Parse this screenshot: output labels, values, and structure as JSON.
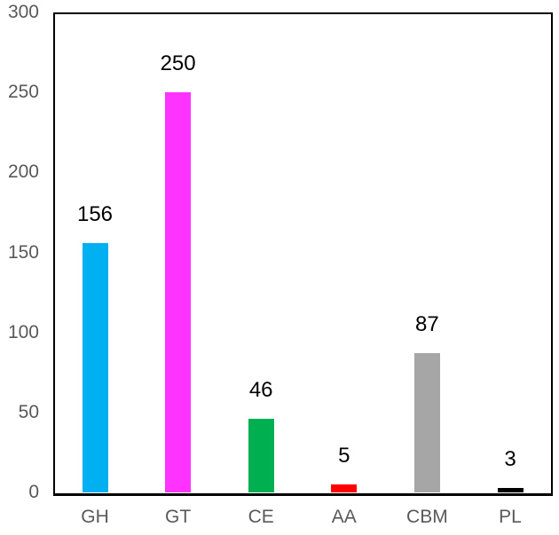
{
  "chart_data": {
    "type": "bar",
    "title": "",
    "xlabel": "",
    "ylabel": "",
    "categories": [
      "GH",
      "GT",
      "CE",
      "AA",
      "CBM",
      "PL"
    ],
    "values": [
      156,
      250,
      46,
      5,
      87,
      3
    ],
    "data_labels": [
      "156",
      "250",
      "46",
      "5",
      "87",
      "3"
    ],
    "colors": [
      "#00B0F0",
      "#FF33FF",
      "#00B050",
      "#FF0000",
      "#A6A6A6",
      "#000000"
    ],
    "ylim": [
      0,
      300
    ],
    "yticks": [
      "0",
      "50",
      "100",
      "150",
      "200",
      "250",
      "300"
    ],
    "grid": false,
    "legend": null
  }
}
